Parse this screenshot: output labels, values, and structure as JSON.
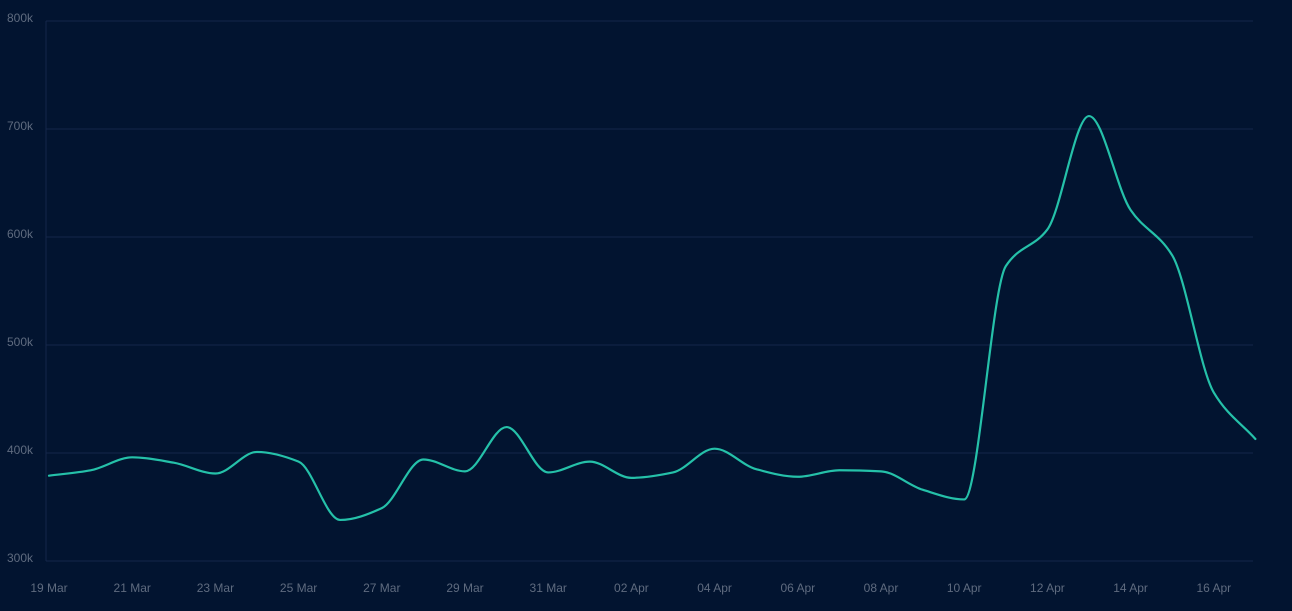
{
  "colors": {
    "background": "#021430",
    "grid": "#14264a",
    "tick_text": "#5f6b7f",
    "series": "#25c1a9"
  },
  "chart_data": {
    "type": "line",
    "title": "",
    "xlabel": "",
    "ylabel": "",
    "ylim": [
      300000,
      800000
    ],
    "y_ticks": [
      300000,
      400000,
      500000,
      600000,
      700000,
      800000
    ],
    "y_tick_labels": [
      "300k",
      "400k",
      "500k",
      "600k",
      "700k",
      "800k"
    ],
    "x_tick_labels": [
      "19 Mar",
      "21 Mar",
      "23 Mar",
      "25 Mar",
      "27 Mar",
      "29 Mar",
      "31 Mar",
      "02 Apr",
      "04 Apr",
      "06 Apr",
      "08 Apr",
      "10 Apr",
      "12 Apr",
      "14 Apr",
      "16 Apr"
    ],
    "grid": "horizontal",
    "legend": "none",
    "series": [
      {
        "color": "#25c1a9",
        "x": [
          "2024-03-19",
          "2024-03-20",
          "2024-03-21",
          "2024-03-22",
          "2024-03-23",
          "2024-03-24",
          "2024-03-25",
          "2024-03-26",
          "2024-03-27",
          "2024-03-28",
          "2024-03-29",
          "2024-03-30",
          "2024-03-31",
          "2024-04-01",
          "2024-04-02",
          "2024-04-03",
          "2024-04-04",
          "2024-04-05",
          "2024-04-06",
          "2024-04-07",
          "2024-04-08",
          "2024-04-09",
          "2024-04-10",
          "2024-04-11",
          "2024-04-12",
          "2024-04-13",
          "2024-04-14",
          "2024-04-15",
          "2024-04-16",
          "2024-04-17"
        ],
        "values": [
          379000,
          384000,
          396000,
          391000,
          381000,
          401000,
          392000,
          338000,
          349000,
          394000,
          383000,
          424000,
          382000,
          392000,
          377000,
          382000,
          404000,
          385000,
          378000,
          384000,
          383000,
          366000,
          357000,
          573000,
          607000,
          712000,
          625000,
          583000,
          456000,
          413000
        ]
      }
    ]
  }
}
